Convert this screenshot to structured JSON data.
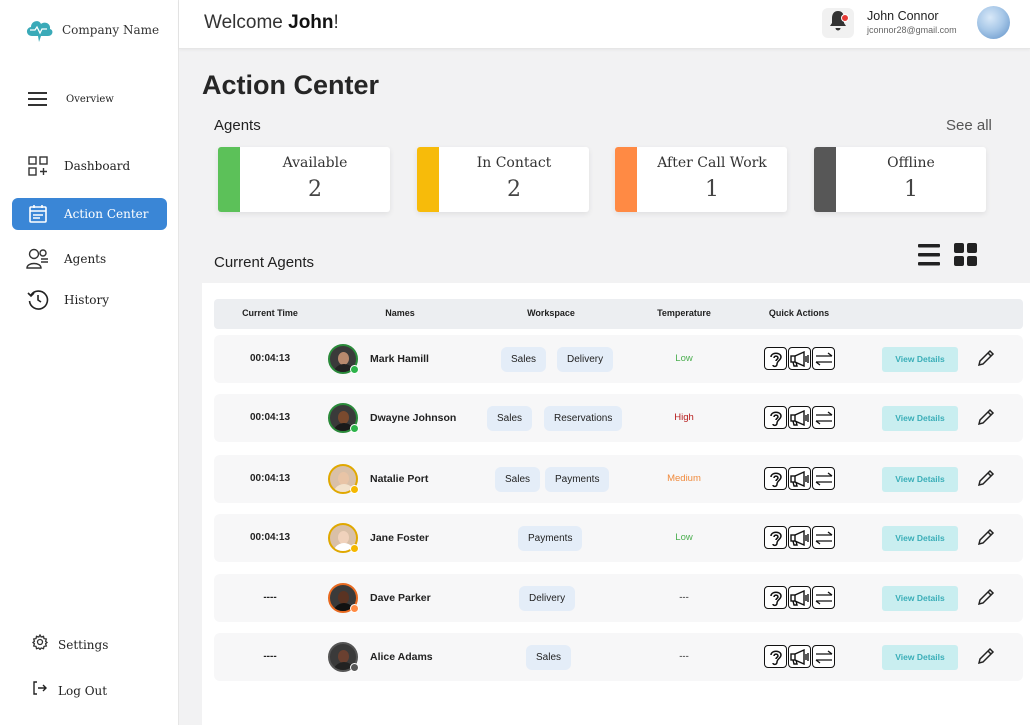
{
  "brand": {
    "name": "Company Name",
    "accent": "#3a86d6"
  },
  "sidebar": {
    "overview": "Overview",
    "items": [
      {
        "label": "Dashboard",
        "icon": "dashboard-icon"
      },
      {
        "label": "Action Center",
        "icon": "calendar-icon",
        "active": true
      },
      {
        "label": "Agents",
        "icon": "agents-icon"
      },
      {
        "label": "History",
        "icon": "history-icon"
      }
    ],
    "settings": "Settings",
    "logout": "Log Out"
  },
  "header": {
    "welcome_prefix": "Welcome ",
    "welcome_name": "John",
    "welcome_suffix": "!",
    "user_name": "John Connor",
    "user_email": "jconnor28@gmail.com"
  },
  "main": {
    "title": "Action Center",
    "agents_title": "Agents",
    "see_all": "See all",
    "current_agents_title": "Current Agents"
  },
  "stats": [
    {
      "label": "Available",
      "value": "2",
      "color": "#5cc159"
    },
    {
      "label": "In Contact",
      "value": "2",
      "color": "#f7bb0a"
    },
    {
      "label": "After Call Work",
      "value": "1",
      "color": "#ff8a44"
    },
    {
      "label": "Offline",
      "value": "1",
      "color": "#575757"
    }
  ],
  "table": {
    "headers": [
      "Current Time",
      "Names",
      "Workspace",
      "Temperature",
      "Quick Actions"
    ],
    "view_details": "View Details",
    "rows": [
      {
        "time": "00:04:13",
        "name": "Mark Hamill",
        "workspaces": [
          "Sales",
          "Delivery"
        ],
        "temperature": "Low",
        "temp_color": "#4caf50",
        "status_color": "#2db34a"
      },
      {
        "time": "00:04:13",
        "name": "Dwayne Johnson",
        "workspaces": [
          "Sales",
          "Reservations"
        ],
        "temperature": "High",
        "temp_color": "#b71c1c",
        "status_color": "#2db34a"
      },
      {
        "time": "00:04:13",
        "name": "Natalie Port",
        "workspaces": [
          "Sales",
          "Payments"
        ],
        "temperature": "Medium",
        "temp_color": "#f08a3c",
        "status_color": "#f5b800"
      },
      {
        "time": "00:04:13",
        "name": "Jane Foster",
        "workspaces": [
          "Payments"
        ],
        "temperature": "Low",
        "temp_color": "#4caf50",
        "status_color": "#f5b800"
      },
      {
        "time": "----",
        "name": "Dave Parker",
        "workspaces": [
          "Delivery"
        ],
        "temperature": "---",
        "temp_color": "#222222",
        "status_color": "#ff8a44"
      },
      {
        "time": "----",
        "name": "Alice Adams",
        "workspaces": [
          "Sales"
        ],
        "temperature": "---",
        "temp_color": "#222222",
        "status_color": "#575757"
      }
    ]
  }
}
